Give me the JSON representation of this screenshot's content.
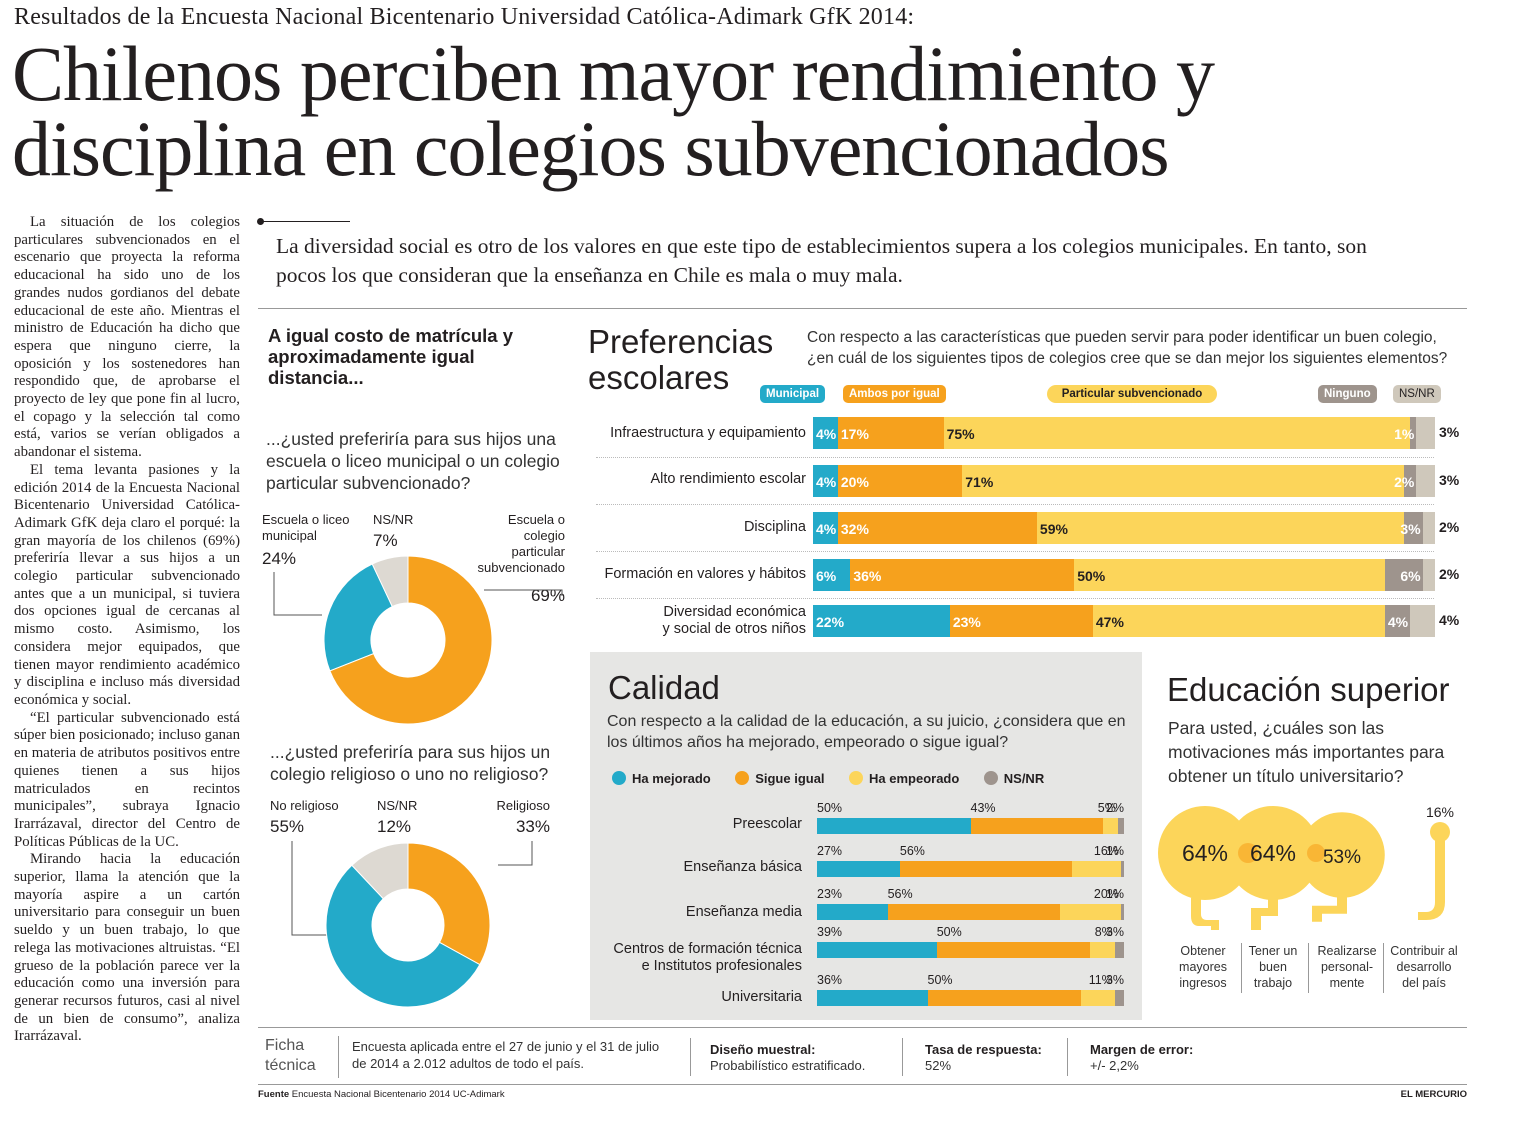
{
  "kicker": "Resultados de la Encuesta Nacional Bicentenario Universidad Católica-Adimark GfK 2014:",
  "headline": {
    "line1": "Chilenos perciben mayor rendimiento y",
    "line2": "disciplina en colegios subvencionados"
  },
  "body": {
    "p1": "La situación de los colegios particulares subvencionados en el escenario que proyecta la reforma educacional ha sido uno de los grandes nudos gordianos del debate educacional de este año. Mientras el ministro de Educación ha dicho que espera que ninguno cierre, la oposición y los sostenedores han respondido que, de aprobarse el proyecto de ley que pone fin al lucro, el copago y la selección tal como está, varios se verían obligados a abandonar el sistema.",
    "p2": "El tema levanta pasiones y la edición 2014 de la Encuesta Nacional Bicentenario Universidad Católica-Adimark GfK deja claro el porqué: la gran mayoría de los chilenos (69%) preferiría llevar a sus hijos a un colegio particular subvencionado antes que a un municipal, si tuviera dos opciones igual de cercanas al mismo costo. Asimismo, los considera mejor equipados, que tienen mayor rendimiento académico y disciplina e incluso más diversidad económica y social.",
    "p3": "“El particular subvencionado está súper bien posicionado; incluso ganan en materia de atributos positivos entre quienes tienen a sus hijos matriculados en recintos municipales”, subraya Ignacio Irarrázaval, director del Centro de Políticas Públicas de la UC.",
    "p4": "Mirando hacia la educación superior, llama la atención que la mayoría aspire a un cartón universitario para conseguir un buen sueldo y un buen trabajo, lo que relega las motivaciones altruistas. “El grueso de la población parece ver la educación como una inversión para generar recursos futuros, casi al nivel de un bien de consumo”, analiza Irarrázaval."
  },
  "deck": "La diversidad social es otro de los valores en que este tipo de establecimientos supera a los colegios municipales. En tanto, son pocos los que consideran que la enseñanza en Chile es mala o muy mala.",
  "colors": {
    "blue": "#23aac9",
    "orange": "#f6a11d",
    "yellow": "#fcd55a",
    "grey": "#9e948d",
    "beige": "#cfc8bb",
    "lightgrey": "#ddd9d2"
  },
  "left": {
    "title": "A igual costo de matrícula y aproximadamente igual distancia...",
    "q1": "...¿usted preferiría para sus hijos una escuela o liceo municipal o un colegio particular subvencionado?",
    "q2": "...¿usted preferiría para sus hijos un colegio religioso o uno no religioso?"
  },
  "chart_data": [
    {
      "type": "pie",
      "id": "donut1",
      "labels": [
        "Escuela o liceo municipal",
        "NS/NR",
        "Escuela o colegio particular subvencionado"
      ],
      "values": [
        24,
        7,
        69
      ],
      "value_labels": [
        "24%",
        "7%",
        "69%"
      ],
      "colors": [
        "#23aac9",
        "#ddd9d2",
        "#f6a11d"
      ]
    },
    {
      "type": "pie",
      "id": "donut2",
      "labels": [
        "No religioso",
        "NS/NR",
        "Religioso"
      ],
      "values": [
        55,
        12,
        33
      ],
      "value_labels": [
        "55%",
        "12%",
        "33%"
      ],
      "colors": [
        "#23aac9",
        "#ddd9d2",
        "#f6a11d"
      ]
    },
    {
      "type": "bar",
      "id": "preferencias",
      "title": "Preferencias escolares",
      "question": "Con respecto a las características que pueden servir para poder identificar un buen colegio, ¿en cuál de los siguientes tipos de colegios cree que se dan mejor los siguientes elementos?",
      "legend": [
        "Municipal",
        "Ambos por igual",
        "Particular subvencionado",
        "Ninguno",
        "NS/NR"
      ],
      "categories": [
        "Infraestructura y equipamiento",
        "Alto rendimiento escolar",
        "Disciplina",
        "Formación en valores y hábitos",
        "Diversidad económica y social de otros niños"
      ],
      "series": [
        {
          "name": "Municipal",
          "values": [
            4,
            4,
            4,
            6,
            22
          ]
        },
        {
          "name": "Ambos por igual",
          "values": [
            17,
            20,
            32,
            36,
            23
          ]
        },
        {
          "name": "Particular subvencionado",
          "values": [
            75,
            71,
            59,
            50,
            47
          ]
        },
        {
          "name": "Ninguno",
          "values": [
            1,
            2,
            3,
            6,
            4
          ]
        },
        {
          "name": "NS/NR",
          "values": [
            3,
            3,
            2,
            2,
            4
          ]
        }
      ],
      "labels": [
        [
          "4%",
          "17%",
          "75%",
          "1%",
          "3%"
        ],
        [
          "4%",
          "20%",
          "71%",
          "2%",
          "3%"
        ],
        [
          "4%",
          "32%",
          "59%",
          "3%",
          "2%"
        ],
        [
          "6%",
          "36%",
          "50%",
          "6%",
          "2%"
        ],
        [
          "22%",
          "23%",
          "47%",
          "4%",
          "4%"
        ]
      ]
    },
    {
      "type": "bar",
      "id": "calidad",
      "title": "Calidad",
      "question": "Con respecto a la calidad de la educación, a su juicio, ¿considera que en los últimos años ha mejorado, empeorado o sigue igual?",
      "legend": [
        "Ha mejorado",
        "Sigue igual",
        "Ha empeorado",
        "NS/NR"
      ],
      "categories": [
        "Preescolar",
        "Enseñanza básica",
        "Enseñanza media",
        "Centros de formación técnica e Institutos profesionales",
        "Universitaria"
      ],
      "series": [
        {
          "name": "Ha mejorado",
          "values": [
            50,
            27,
            23,
            39,
            36
          ]
        },
        {
          "name": "Sigue igual",
          "values": [
            43,
            56,
            56,
            50,
            50
          ]
        },
        {
          "name": "Ha empeorado",
          "values": [
            5,
            16,
            20,
            8,
            11
          ]
        },
        {
          "name": "NS/NR",
          "values": [
            2,
            1,
            1,
            3,
            3
          ]
        }
      ],
      "labels": [
        [
          "50%",
          "43%",
          "5%",
          "2%"
        ],
        [
          "27%",
          "56%",
          "16%",
          "1%"
        ],
        [
          "23%",
          "56%",
          "20%",
          "1%"
        ],
        [
          "39%",
          "50%",
          "8%",
          "3%"
        ],
        [
          "36%",
          "50%",
          "11%",
          "3%"
        ]
      ]
    },
    {
      "type": "scatter",
      "id": "educacion_superior",
      "title": "Educación superior",
      "question": "Para usted, ¿cuáles son las motivaciones más importantes para obtener un título universitario?",
      "categories": [
        "Obtener mayores ingresos",
        "Tener un buen trabajo",
        "Realizarse personal- mente",
        "Contribuir al desarrollo del país"
      ],
      "values": [
        64,
        64,
        53,
        16
      ],
      "value_labels": [
        "64%",
        "64%",
        "53%",
        "16%"
      ]
    }
  ],
  "pref_labels": {
    "cat4_line1": "Diversidad económica",
    "cat4_line2": "y social de otros niños",
    "title_line1": "Preferencias",
    "title_line2": "escolares"
  },
  "cal_labels": {
    "cat3_line1": "Centros de formación técnica",
    "cat3_line2": "e Institutos profesionales"
  },
  "eco_labels": [
    [
      "Obtener",
      "mayores",
      "ingresos"
    ],
    [
      "Tener un",
      "buen",
      "trabajo"
    ],
    [
      "Realizarse",
      "personal-",
      "mente"
    ],
    [
      "Contribuir al",
      "desarrollo",
      "del país"
    ]
  ],
  "ficha": {
    "label": "Ficha técnica",
    "text": "Encuesta aplicada entre el 27 de junio y el 31 de julio de 2014 a 2.012 adultos de todo el país.",
    "diseno_h": "Diseño muestral:",
    "diseno_t": "Probabilístico estratificado.",
    "tasa_h": "Tasa de respuesta:",
    "tasa_t": "52%",
    "margen_h": "Margen de error:",
    "margen_t": "+/- 2,2%"
  },
  "fuente": {
    "label": "Fuente",
    "text": "Encuesta Nacional Bicentenario 2014 UC-Adimark"
  },
  "credit": "EL MERCURIO"
}
